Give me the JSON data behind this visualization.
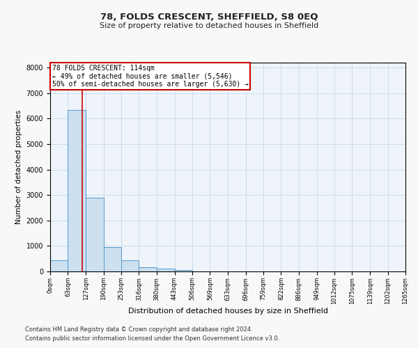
{
  "title": "78, FOLDS CRESCENT, SHEFFIELD, S8 0EQ",
  "subtitle": "Size of property relative to detached houses in Sheffield",
  "xlabel": "Distribution of detached houses by size in Sheffield",
  "ylabel": "Number of detached properties",
  "footer_line1": "Contains HM Land Registry data © Crown copyright and database right 2024.",
  "footer_line2": "Contains public sector information licensed under the Open Government Licence v3.0.",
  "annotation_title": "78 FOLDS CRESCENT: 114sqm",
  "annotation_line1": "← 49% of detached houses are smaller (5,546)",
  "annotation_line2": "50% of semi-detached houses are larger (5,630) →",
  "property_sqm": 114,
  "bins": [
    0,
    63,
    127,
    190,
    253,
    316,
    380,
    443,
    506,
    569,
    633,
    696,
    759,
    822,
    886,
    949,
    1012,
    1075,
    1139,
    1202,
    1265
  ],
  "bar_values": [
    430,
    6350,
    2900,
    950,
    430,
    160,
    120,
    60,
    0,
    0,
    0,
    0,
    0,
    0,
    0,
    0,
    0,
    0,
    0,
    0
  ],
  "bar_color": "#cce0f0",
  "bar_edge_color": "#5599cc",
  "grid_color": "#d0dce8",
  "bg_color": "#eef4fa",
  "fig_bg_color": "#f8f8f8",
  "vline_color": "#cc0000",
  "vline_x": 114,
  "annotation_box_color": "#cc0000",
  "ylim": [
    0,
    8200
  ],
  "yticks": [
    0,
    1000,
    2000,
    3000,
    4000,
    5000,
    6000,
    7000,
    8000
  ]
}
